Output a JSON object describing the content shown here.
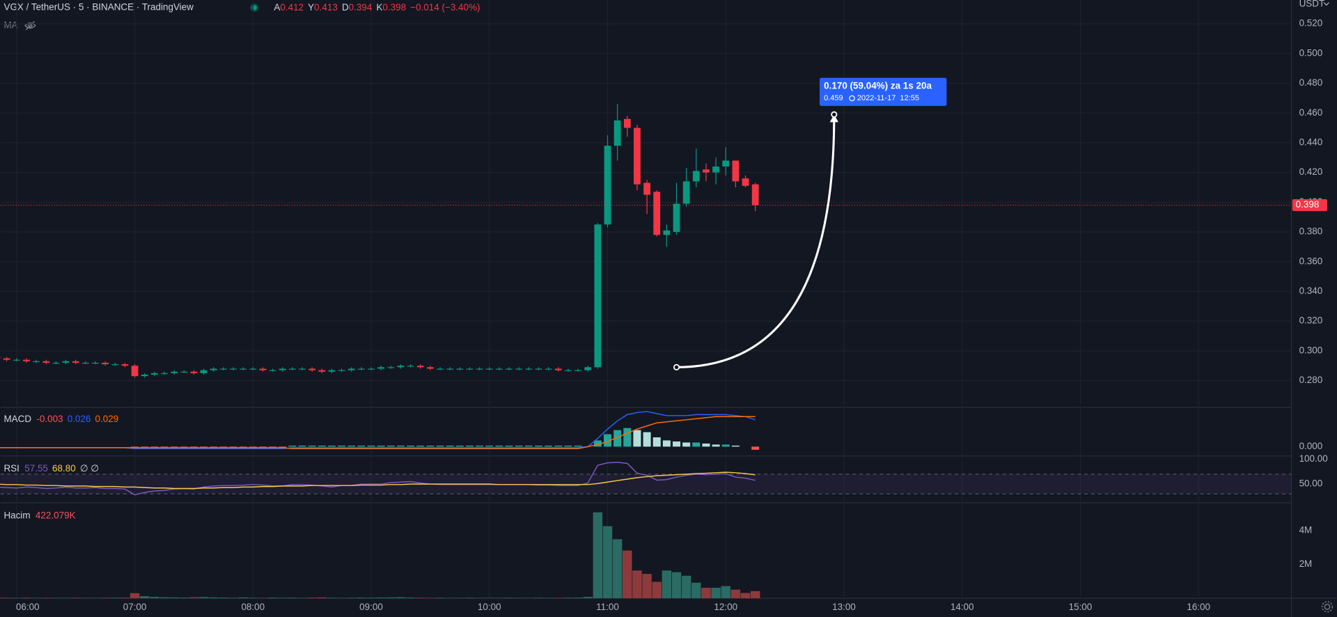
{
  "chart_data": [
    {
      "type": "candlestick",
      "title": "VGX / TetherUS · 5 · BINANCE · TradingView",
      "ohlc_letters": [
        "A",
        "Y",
        "D",
        "K"
      ],
      "change": "−0.014 (−3.40%)",
      "indicator": "MA",
      "currency": "USDT",
      "up_color": "#089981",
      "down_color": "#f23645",
      "grid": true,
      "last_price_line": true,
      "x": [
        "05:50",
        "05:55",
        "06:00",
        "06:05",
        "06:10",
        "06:15",
        "06:20",
        "06:25",
        "06:30",
        "06:35",
        "06:40",
        "06:45",
        "06:50",
        "06:55",
        "07:00",
        "07:05",
        "07:10",
        "07:15",
        "07:20",
        "07:25",
        "07:30",
        "07:35",
        "07:40",
        "07:45",
        "07:50",
        "07:55",
        "08:00",
        "08:05",
        "08:10",
        "08:15",
        "08:20",
        "08:25",
        "08:30",
        "08:35",
        "08:40",
        "08:45",
        "08:50",
        "08:55",
        "09:00",
        "09:05",
        "09:10",
        "09:15",
        "09:20",
        "09:25",
        "09:30",
        "09:35",
        "09:40",
        "09:45",
        "09:50",
        "09:55",
        "10:00",
        "10:05",
        "10:10",
        "10:15",
        "10:20",
        "10:25",
        "10:30",
        "10:35",
        "10:40",
        "10:45",
        "10:50",
        "10:55",
        "11:00",
        "11:05",
        "11:10",
        "11:15",
        "11:20",
        "11:25",
        "11:30",
        "11:35",
        "11:40",
        "11:45",
        "11:50",
        "11:55",
        "12:00",
        "12:05",
        "12:10",
        "12:15"
      ],
      "open": [
        0.296,
        0.295,
        0.294,
        0.294,
        0.293,
        0.293,
        0.292,
        0.292,
        0.293,
        0.292,
        0.292,
        0.292,
        0.291,
        0.291,
        0.29,
        0.283,
        0.284,
        0.285,
        0.285,
        0.286,
        0.286,
        0.285,
        0.287,
        0.288,
        0.288,
        0.288,
        0.288,
        0.288,
        0.287,
        0.287,
        0.288,
        0.288,
        0.288,
        0.287,
        0.286,
        0.287,
        0.287,
        0.288,
        0.288,
        0.288,
        0.289,
        0.289,
        0.29,
        0.29,
        0.289,
        0.288,
        0.288,
        0.288,
        0.288,
        0.288,
        0.288,
        0.288,
        0.288,
        0.288,
        0.288,
        0.288,
        0.288,
        0.288,
        0.287,
        0.287,
        0.287,
        0.289,
        0.385,
        0.438,
        0.456,
        0.45,
        0.413,
        0.407,
        0.378,
        0.38,
        0.399,
        0.414,
        0.422,
        0.42,
        0.424,
        0.428,
        0.416,
        0.412
      ],
      "high": [
        0.297,
        0.296,
        0.295,
        0.295,
        0.294,
        0.294,
        0.293,
        0.294,
        0.294,
        0.293,
        0.293,
        0.293,
        0.292,
        0.292,
        0.291,
        0.285,
        0.286,
        0.286,
        0.287,
        0.287,
        0.287,
        0.288,
        0.289,
        0.289,
        0.289,
        0.289,
        0.289,
        0.289,
        0.288,
        0.289,
        0.289,
        0.289,
        0.289,
        0.288,
        0.288,
        0.288,
        0.289,
        0.289,
        0.289,
        0.29,
        0.29,
        0.291,
        0.291,
        0.291,
        0.29,
        0.289,
        0.289,
        0.289,
        0.289,
        0.289,
        0.289,
        0.289,
        0.289,
        0.289,
        0.289,
        0.289,
        0.289,
        0.289,
        0.288,
        0.288,
        0.29,
        0.386,
        0.445,
        0.466,
        0.458,
        0.452,
        0.415,
        0.408,
        0.385,
        0.413,
        0.423,
        0.436,
        0.426,
        0.43,
        0.437,
        0.428,
        0.418,
        0.413
      ],
      "low": [
        0.294,
        0.293,
        0.293,
        0.292,
        0.292,
        0.291,
        0.291,
        0.291,
        0.291,
        0.291,
        0.291,
        0.29,
        0.29,
        0.289,
        0.282,
        0.282,
        0.283,
        0.284,
        0.284,
        0.285,
        0.284,
        0.284,
        0.286,
        0.287,
        0.287,
        0.287,
        0.287,
        0.286,
        0.286,
        0.286,
        0.287,
        0.287,
        0.286,
        0.285,
        0.285,
        0.286,
        0.286,
        0.287,
        0.287,
        0.287,
        0.288,
        0.288,
        0.289,
        0.288,
        0.287,
        0.287,
        0.287,
        0.287,
        0.287,
        0.287,
        0.287,
        0.287,
        0.287,
        0.287,
        0.287,
        0.287,
        0.287,
        0.286,
        0.286,
        0.286,
        0.286,
        0.288,
        0.383,
        0.428,
        0.444,
        0.408,
        0.392,
        0.377,
        0.37,
        0.378,
        0.397,
        0.41,
        0.414,
        0.412,
        0.418,
        0.41,
        0.41,
        0.394
      ],
      "close": [
        0.295,
        0.294,
        0.294,
        0.293,
        0.293,
        0.292,
        0.292,
        0.293,
        0.292,
        0.292,
        0.292,
        0.291,
        0.291,
        0.29,
        0.283,
        0.284,
        0.285,
        0.285,
        0.286,
        0.286,
        0.285,
        0.287,
        0.288,
        0.288,
        0.288,
        0.288,
        0.288,
        0.287,
        0.287,
        0.288,
        0.288,
        0.288,
        0.287,
        0.286,
        0.287,
        0.287,
        0.288,
        0.288,
        0.288,
        0.289,
        0.289,
        0.29,
        0.29,
        0.289,
        0.288,
        0.288,
        0.288,
        0.288,
        0.288,
        0.288,
        0.288,
        0.288,
        0.288,
        0.288,
        0.288,
        0.288,
        0.288,
        0.287,
        0.287,
        0.287,
        0.289,
        0.385,
        0.438,
        0.455,
        0.45,
        0.412,
        0.405,
        0.378,
        0.381,
        0.399,
        0.414,
        0.421,
        0.42,
        0.424,
        0.428,
        0.414,
        0.411,
        0.398
      ],
      "ylim": [
        0.262,
        0.536
      ],
      "yticks": [
        {
          "value": 0.52,
          "label": "0.520"
        },
        {
          "value": 0.5,
          "label": "0.500"
        },
        {
          "value": 0.48,
          "label": "0.480"
        },
        {
          "value": 0.46,
          "label": "0.460"
        },
        {
          "value": 0.44,
          "label": "0.440"
        },
        {
          "value": 0.42,
          "label": "0.420"
        },
        {
          "value": 0.4,
          "label": "0.400"
        },
        {
          "value": 0.38,
          "label": "0.380"
        },
        {
          "value": 0.36,
          "label": "0.360"
        },
        {
          "value": 0.34,
          "label": "0.340"
        },
        {
          "value": 0.32,
          "label": "0.320"
        },
        {
          "value": 0.3,
          "label": "0.300"
        },
        {
          "value": 0.28,
          "label": "0.280"
        }
      ],
      "xticks": [
        "06:00",
        "07:00",
        "08:00",
        "09:00",
        "10:00",
        "11:00",
        "12:00",
        "13:00",
        "14:00",
        "15:00",
        "16:00"
      ],
      "annotation": {
        "text": "0.170 (59.04%) za 1s 20a",
        "date": "2022-11-17  12:55",
        "color": "#2962ff",
        "from": {
          "x": "11:35",
          "y": 0.289
        },
        "to": {
          "x": "12:55",
          "y": 0.459
        }
      }
    },
    {
      "type": "macd",
      "title": "MACD",
      "ylim": [
        -0.009,
        0.038
      ],
      "yticks": [
        {
          "value": 0,
          "label": "0.000"
        }
      ],
      "histogram": {
        "colors": [
          "#26a69a",
          "#b2dfdb",
          "#ff5252",
          "#ffcdd2"
        ],
        "values": [
          0,
          0,
          0,
          0,
          0,
          0,
          0,
          0,
          0,
          0,
          0,
          0,
          0,
          0,
          -0.001,
          -0.001,
          -0.001,
          -0.001,
          -0.001,
          -0.001,
          -0.001,
          -0.001,
          -0.001,
          -0.001,
          -0.001,
          -0.001,
          -0.001,
          -0.001,
          -0.001,
          -0.001,
          0.001,
          0.001,
          0.001,
          0.001,
          0.001,
          0.001,
          0.001,
          0.001,
          0.001,
          0.001,
          0.001,
          0.001,
          0.001,
          0.001,
          0.001,
          0.001,
          0.001,
          0.001,
          0.001,
          0.001,
          0.001,
          0.001,
          0.001,
          0.001,
          0.001,
          0.001,
          0.001,
          0.001,
          0.001,
          0.001,
          0,
          0.006,
          0.012,
          0.016,
          0.018,
          0.016,
          0.014,
          0.009,
          0.006,
          0.005,
          0.004,
          0.004,
          0.003,
          0.002,
          0.002,
          0.001,
          0,
          -0.003
        ]
      },
      "macd": {
        "color": "#2962ff",
        "values": [
          -0.001,
          -0.001,
          -0.001,
          -0.001,
          -0.001,
          -0.001,
          -0.001,
          -0.001,
          -0.001,
          -0.001,
          -0.001,
          -0.001,
          -0.001,
          -0.001,
          -0.002,
          -0.002,
          -0.002,
          -0.002,
          -0.002,
          -0.002,
          -0.002,
          -0.002,
          -0.002,
          -0.002,
          -0.002,
          -0.002,
          -0.002,
          -0.002,
          -0.002,
          -0.002,
          -0.001,
          -0.001,
          -0.001,
          -0.001,
          -0.001,
          -0.001,
          -0.001,
          -0.001,
          -0.001,
          -0.001,
          -0.001,
          -0.001,
          -0.001,
          -0.001,
          -0.001,
          -0.001,
          -0.001,
          -0.001,
          -0.001,
          -0.001,
          -0.001,
          -0.001,
          -0.001,
          -0.001,
          -0.001,
          -0.001,
          -0.001,
          -0.001,
          -0.001,
          -0.001,
          0,
          0.008,
          0.017,
          0.025,
          0.031,
          0.033,
          0.034,
          0.032,
          0.03,
          0.03,
          0.03,
          0.031,
          0.031,
          0.031,
          0.031,
          0.03,
          0.029,
          0.026
        ]
      },
      "signal": {
        "color": "#ff6d00",
        "values": [
          -0.001,
          -0.001,
          -0.001,
          -0.001,
          -0.001,
          -0.001,
          -0.001,
          -0.001,
          -0.001,
          -0.001,
          -0.001,
          -0.001,
          -0.001,
          -0.001,
          -0.001,
          -0.001,
          -0.001,
          -0.001,
          -0.001,
          -0.001,
          -0.001,
          -0.001,
          -0.001,
          -0.001,
          -0.001,
          -0.001,
          -0.001,
          -0.001,
          -0.001,
          -0.001,
          -0.002,
          -0.002,
          -0.002,
          -0.002,
          -0.002,
          -0.002,
          -0.002,
          -0.002,
          -0.002,
          -0.002,
          -0.002,
          -0.002,
          -0.002,
          -0.002,
          -0.002,
          -0.002,
          -0.002,
          -0.002,
          -0.002,
          -0.002,
          -0.002,
          -0.002,
          -0.002,
          -0.002,
          -0.002,
          -0.002,
          -0.002,
          -0.002,
          -0.002,
          -0.002,
          0,
          0.002,
          0.005,
          0.009,
          0.013,
          0.017,
          0.02,
          0.023,
          0.024,
          0.025,
          0.026,
          0.027,
          0.028,
          0.029,
          0.029,
          0.029,
          0.029,
          0.029
        ]
      }
    },
    {
      "type": "rsi",
      "title": "RSI",
      "extra": "∅ ∅",
      "ylim": [
        12,
        107
      ],
      "yticks": [
        {
          "value": 100,
          "label": "100.00"
        },
        {
          "value": 50,
          "label": "50.00"
        }
      ],
      "band": [
        30,
        70
      ],
      "band_color": "#7e57c2",
      "rsi": {
        "color": "#7e57c2",
        "values": [
          44,
          43,
          42,
          44,
          43,
          41,
          42,
          44,
          42,
          42,
          43,
          41,
          41,
          40,
          28,
          33,
          36,
          37,
          40,
          41,
          40,
          44,
          46,
          47,
          47,
          48,
          49,
          48,
          46,
          46,
          49,
          49,
          48,
          46,
          44,
          47,
          47,
          50,
          50,
          50,
          53,
          54,
          55,
          52,
          50,
          49,
          49,
          49,
          49,
          49,
          49,
          49,
          49,
          49,
          49,
          48,
          48,
          47,
          47,
          47,
          52,
          88,
          93,
          94,
          92,
          72,
          68,
          58,
          59,
          64,
          68,
          70,
          69,
          70,
          71,
          64,
          62,
          57.55
        ]
      },
      "ma": {
        "color": "#f7c948",
        "last_label": "68.80",
        "values": [
          50,
          49,
          49,
          48,
          48,
          47,
          47,
          46,
          46,
          46,
          45,
          45,
          45,
          44,
          44,
          43,
          42,
          42,
          41,
          41,
          41,
          42,
          42,
          43,
          43,
          44,
          44,
          45,
          45,
          46,
          46,
          46,
          47,
          47,
          47,
          47,
          47,
          48,
          48,
          48,
          49,
          49,
          50,
          50,
          50,
          50,
          50,
          50,
          50,
          50,
          50,
          49,
          49,
          49,
          49,
          49,
          49,
          49,
          49,
          49,
          49,
          51,
          54,
          57,
          60,
          63,
          65,
          67,
          68,
          69,
          70,
          71,
          72,
          73,
          74,
          73,
          71,
          68.8
        ]
      }
    },
    {
      "type": "volume",
      "title": "Hacim",
      "last_label": "422.079K",
      "up_color": "#2a6b63",
      "down_color": "#8e3a3c",
      "ylim": [
        0,
        5640000
      ],
      "yticks": [
        {
          "value": 4000000,
          "label": "4M"
        },
        {
          "value": 2000000,
          "label": "2M"
        }
      ],
      "values": [
        40000,
        30000,
        25000,
        35000,
        20000,
        30000,
        25000,
        20000,
        30000,
        25000,
        20000,
        30000,
        35000,
        40000,
        300000,
        120000,
        80000,
        60000,
        50000,
        40000,
        60000,
        70000,
        50000,
        40000,
        30000,
        50000,
        30000,
        25000,
        40000,
        30000,
        35000,
        25000,
        40000,
        50000,
        30000,
        25000,
        30000,
        40000,
        35000,
        45000,
        50000,
        60000,
        40000,
        30000,
        25000,
        30000,
        20000,
        25000,
        30000,
        20000,
        25000,
        20000,
        30000,
        25000,
        20000,
        30000,
        25000,
        30000,
        35000,
        40000,
        80000,
        5080000,
        4260000,
        3490000,
        2820000,
        1640000,
        1440000,
        970000,
        1640000,
        1540000,
        1330000,
        920000,
        620000,
        620000,
        720000,
        510000,
        310000,
        422079
      ]
    }
  ]
}
